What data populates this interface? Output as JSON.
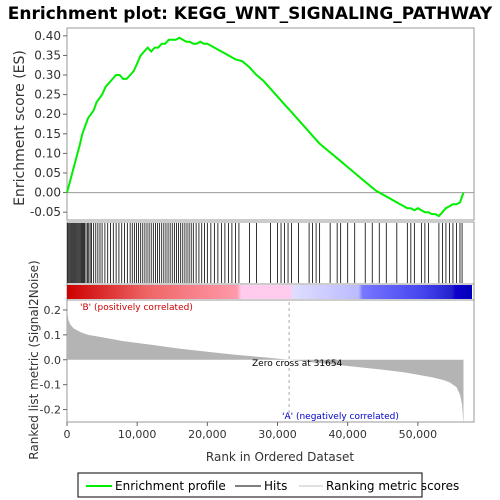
{
  "chart_data": {
    "type": "line",
    "title": "Enrichment plot: KEGG_WNT_SIGNALING_PATHWAY",
    "xlabel": "Rank in Ordered Dataset",
    "xlim": [
      0,
      58000
    ],
    "x_ticks": [
      0,
      10000,
      20000,
      30000,
      40000,
      50000
    ],
    "x_tick_labels": [
      "0",
      "10,000",
      "20,000",
      "30,000",
      "40,000",
      "50,000"
    ],
    "es_panel": {
      "ylabel": "Enrichment score (ES)",
      "ylim": [
        -0.07,
        0.42
      ],
      "y_ticks": [
        -0.05,
        0.0,
        0.05,
        0.1,
        0.15,
        0.2,
        0.25,
        0.3,
        0.35,
        0.4
      ],
      "y_tick_labels": [
        "-0.05",
        "0.00",
        "0.05",
        "0.10",
        "0.15",
        "0.20",
        "0.25",
        "0.30",
        "0.35",
        "0.40"
      ],
      "series": [
        {
          "name": "Enrichment profile",
          "color": "#00ee00",
          "x": [
            0,
            300,
            600,
            900,
            1200,
            1500,
            1800,
            2200,
            2600,
            3000,
            3400,
            3800,
            4200,
            4600,
            5000,
            5500,
            6000,
            6500,
            7000,
            7500,
            8000,
            8500,
            9000,
            9500,
            10000,
            10500,
            11000,
            11500,
            12000,
            12500,
            13000,
            13500,
            14000,
            14500,
            15000,
            15500,
            16000,
            16500,
            17000,
            17500,
            18000,
            18500,
            19000,
            19500,
            20000,
            21000,
            22000,
            23000,
            24000,
            25000,
            26000,
            27000,
            28000,
            29000,
            30000,
            31000,
            32000,
            33000,
            34000,
            35000,
            36000,
            37000,
            38000,
            39000,
            40000,
            41000,
            42000,
            43000,
            44000,
            45000,
            46000,
            47000,
            48000,
            48500,
            49000,
            49500,
            50000,
            50500,
            51000,
            51500,
            52000,
            52500,
            53000,
            53500,
            54000,
            54500,
            55000,
            55500,
            56000,
            56300,
            56500
          ],
          "y": [
            0.0,
            0.02,
            0.04,
            0.06,
            0.08,
            0.1,
            0.12,
            0.15,
            0.17,
            0.19,
            0.2,
            0.21,
            0.23,
            0.24,
            0.25,
            0.27,
            0.28,
            0.29,
            0.3,
            0.3,
            0.29,
            0.29,
            0.3,
            0.31,
            0.33,
            0.35,
            0.36,
            0.37,
            0.36,
            0.37,
            0.37,
            0.38,
            0.38,
            0.39,
            0.39,
            0.39,
            0.395,
            0.39,
            0.385,
            0.385,
            0.38,
            0.38,
            0.385,
            0.38,
            0.38,
            0.37,
            0.36,
            0.35,
            0.34,
            0.335,
            0.32,
            0.3,
            0.285,
            0.265,
            0.245,
            0.225,
            0.205,
            0.185,
            0.165,
            0.145,
            0.125,
            0.11,
            0.095,
            0.08,
            0.065,
            0.05,
            0.035,
            0.02,
            0.005,
            -0.005,
            -0.015,
            -0.025,
            -0.035,
            -0.04,
            -0.04,
            -0.045,
            -0.04,
            -0.045,
            -0.05,
            -0.05,
            -0.055,
            -0.055,
            -0.06,
            -0.05,
            -0.04,
            -0.035,
            -0.03,
            -0.03,
            -0.025,
            -0.01,
            0.0
          ]
        }
      ]
    },
    "hits_panel": {
      "hit_ranks": [
        100,
        250,
        400,
        550,
        700,
        850,
        1000,
        1150,
        1300,
        1450,
        1600,
        1750,
        1900,
        2050,
        2200,
        2350,
        2500,
        2700,
        2900,
        3100,
        3300,
        3500,
        3800,
        4100,
        4400,
        4700,
        5000,
        5400,
        5800,
        6200,
        6600,
        7000,
        7400,
        7800,
        8200,
        8600,
        9000,
        9300,
        9600,
        9900,
        10200,
        10500,
        10800,
        11100,
        11400,
        11700,
        12000,
        12300,
        12600,
        12900,
        13200,
        13500,
        13800,
        14100,
        14400,
        14700,
        15000,
        15300,
        15600,
        15900,
        16200,
        16500,
        16800,
        17100,
        17400,
        17700,
        18000,
        18400,
        18800,
        19200,
        19600,
        20000,
        20500,
        21000,
        21500,
        22000,
        22500,
        23000,
        23500,
        24000,
        24500,
        26000,
        27000,
        29000,
        30000,
        30500,
        31000,
        31500,
        32000,
        33000,
        34500,
        35000,
        35500,
        36000,
        37500,
        38500,
        39000,
        40000,
        41000,
        42500,
        43500,
        44500,
        45500,
        47000,
        48500,
        49000,
        49500,
        50500,
        51000,
        51500,
        53000,
        53500,
        54000,
        54500,
        55000,
        55500,
        56000,
        56300
      ],
      "ranking_bar_colors": [
        "#cc0000",
        "#ff9999",
        "#ffccee",
        "#ccccff",
        "#6666ff",
        "#0000cc"
      ]
    },
    "metric_panel": {
      "ylabel": "Ranked list metric (Signal2Noise)",
      "ylim": [
        -0.25,
        0.24
      ],
      "y_ticks": [
        -0.2,
        -0.1,
        0.0,
        0.1,
        0.2
      ],
      "y_tick_labels": [
        "-0.2",
        "-0.1",
        "0.0",
        "0.1",
        "0.2"
      ],
      "fill_color": "#b4b4b4",
      "x": [
        0,
        200,
        500,
        1000,
        2000,
        3000,
        5000,
        8000,
        12000,
        16000,
        20000,
        24000,
        28000,
        31654,
        35000,
        40000,
        45000,
        48000,
        50000,
        52000,
        53500,
        54500,
        55500,
        56000,
        56300,
        56500
      ],
      "y": [
        0.2,
        0.16,
        0.14,
        0.125,
        0.11,
        0.1,
        0.09,
        0.075,
        0.06,
        0.045,
        0.032,
        0.02,
        0.01,
        0.0,
        -0.01,
        -0.025,
        -0.04,
        -0.05,
        -0.06,
        -0.07,
        -0.08,
        -0.09,
        -0.11,
        -0.14,
        -0.18,
        -0.26
      ],
      "zero_cross": 31654,
      "annotations": {
        "positive": "'B' (positively correlated)",
        "negative": "'A' (negatively correlated)",
        "zero_cross": "Zero cross at 31654"
      }
    },
    "legend": {
      "placement": "bottom",
      "items": [
        {
          "label": "Enrichment profile",
          "color": "#00ee00"
        },
        {
          "label": "Hits",
          "color": "#000000"
        },
        {
          "label": "Ranking metric scores",
          "color": "#c0c0c0"
        }
      ]
    }
  }
}
